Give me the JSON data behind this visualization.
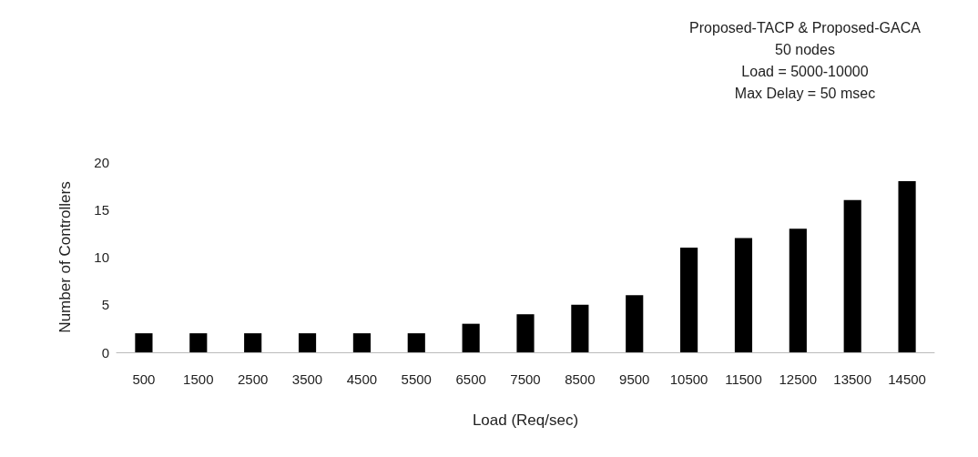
{
  "chart_data": {
    "type": "bar",
    "xlabel": "Load (Req/sec)",
    "ylabel": "Number of Controllers",
    "annotations": [
      "Proposed-TACP & Proposed-GACA",
      "50 nodes",
      "Load = 5000-10000",
      "Max Delay = 50 msec"
    ],
    "categories": [
      "500",
      "1500",
      "2500",
      "3500",
      "4500",
      "5500",
      "6500",
      "7500",
      "8500",
      "9500",
      "10500",
      "11500",
      "12500",
      "13500",
      "14500"
    ],
    "values": [
      2,
      2,
      2,
      2,
      2,
      2,
      3,
      4,
      5,
      6,
      11,
      12,
      13,
      16,
      18
    ],
    "color": "#000000",
    "ylim": [
      0,
      20
    ],
    "yticks": [
      0,
      5,
      10,
      15,
      20
    ],
    "grid": false
  }
}
